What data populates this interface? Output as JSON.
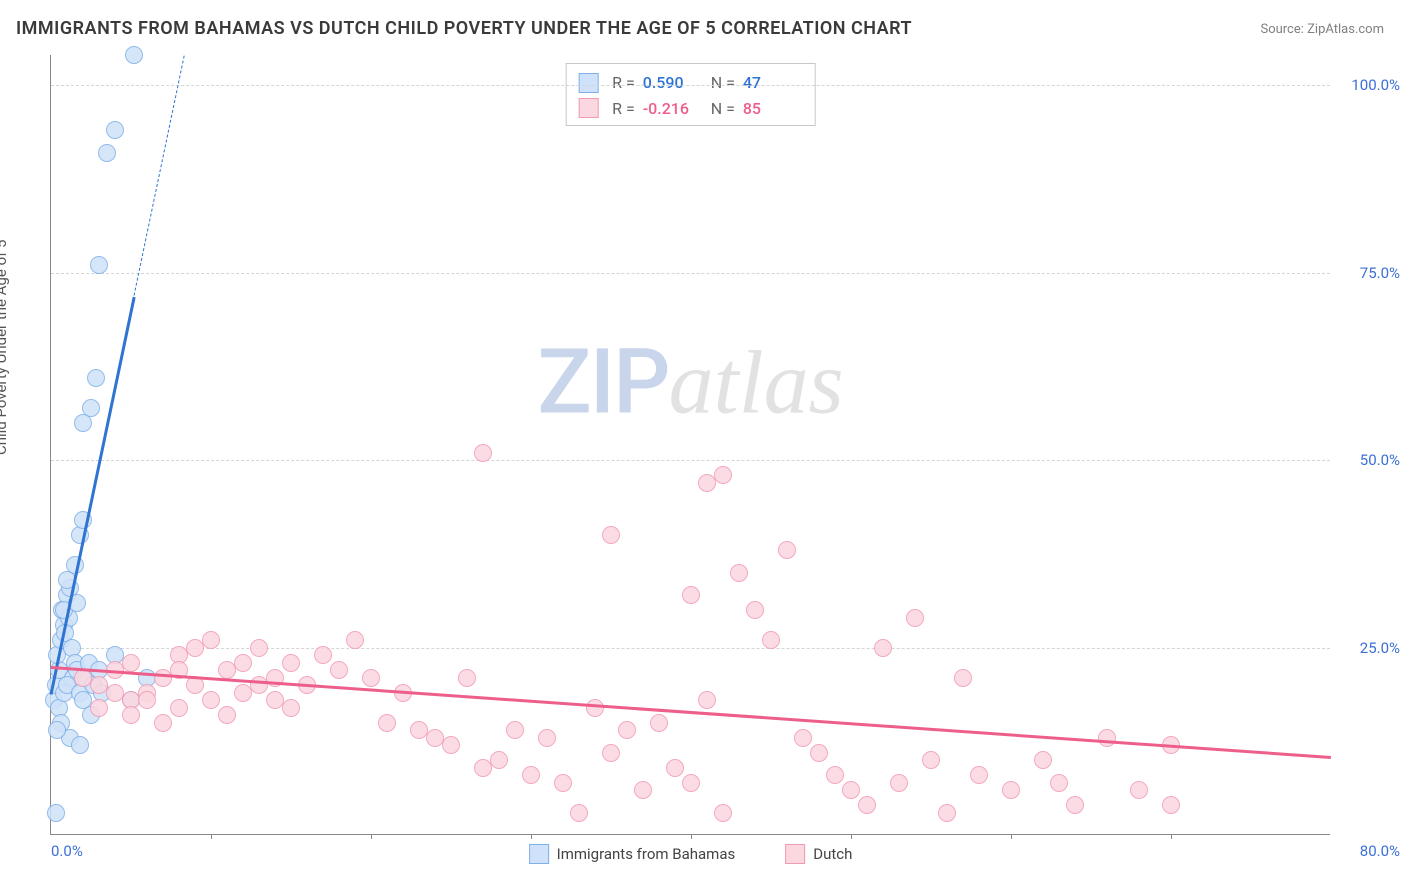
{
  "title": "IMMIGRANTS FROM BAHAMAS VS DUTCH CHILD POVERTY UNDER THE AGE OF 5 CORRELATION CHART",
  "source_label": "Source: ",
  "source_name": "ZipAtlas.com",
  "ylabel": "Child Poverty Under the Age of 5",
  "watermark": {
    "part1": "ZIP",
    "part2": "atlas"
  },
  "chart": {
    "type": "scatter",
    "xlim": [
      0,
      80
    ],
    "ylim": [
      0,
      104
    ],
    "x_ticks": [
      0,
      80
    ],
    "x_tick_labels": [
      "0.0%",
      "80.0%"
    ],
    "y_ticks": [
      25,
      50,
      75,
      100
    ],
    "y_tick_labels": [
      "25.0%",
      "50.0%",
      "75.0%",
      "100.0%"
    ],
    "x_minor_ticks": [
      10,
      20,
      30,
      40,
      50,
      60,
      70
    ],
    "x_tick_color": "#3b6fd6",
    "y_tick_color": "#3b6fd6",
    "background_color": "#ffffff",
    "grid_color": "#d5d5d5",
    "axis_color": "#888888",
    "series": [
      {
        "name": "Immigrants from Bahamas",
        "fill": "#cfe2f9",
        "stroke": "#7fb0e8",
        "trend_color": "#2f74d0",
        "R": "0.590",
        "N": "47",
        "trend": {
          "x1": 0,
          "y1": 19,
          "x2": 5.2,
          "y2": 72,
          "dash_to_y": 104
        },
        "points": [
          [
            0.2,
            18
          ],
          [
            0.3,
            20
          ],
          [
            0.5,
            22
          ],
          [
            0.4,
            24
          ],
          [
            0.6,
            26
          ],
          [
            0.8,
            28
          ],
          [
            0.7,
            30
          ],
          [
            1.0,
            32
          ],
          [
            1.2,
            33
          ],
          [
            1.1,
            29
          ],
          [
            0.9,
            27
          ],
          [
            1.3,
            25
          ],
          [
            1.5,
            23
          ],
          [
            1.4,
            21
          ],
          [
            0.5,
            17
          ],
          [
            0.8,
            19
          ],
          [
            1.0,
            20
          ],
          [
            1.6,
            22
          ],
          [
            1.8,
            19
          ],
          [
            2.0,
            18
          ],
          [
            2.2,
            21
          ],
          [
            2.4,
            23
          ],
          [
            2.6,
            20
          ],
          [
            3.0,
            22
          ],
          [
            3.2,
            19
          ],
          [
            4.0,
            24
          ],
          [
            5.0,
            18
          ],
          [
            6.0,
            21
          ],
          [
            1.0,
            34
          ],
          [
            1.5,
            36
          ],
          [
            1.8,
            40
          ],
          [
            2.0,
            42
          ],
          [
            0.6,
            15
          ],
          [
            1.2,
            13
          ],
          [
            1.8,
            12
          ],
          [
            2.5,
            16
          ],
          [
            0.4,
            14
          ],
          [
            2.0,
            55
          ],
          [
            2.5,
            57
          ],
          [
            2.8,
            61
          ],
          [
            3.0,
            76
          ],
          [
            3.5,
            91
          ],
          [
            4.0,
            94
          ],
          [
            5.2,
            104
          ],
          [
            0.3,
            3
          ],
          [
            0.8,
            30
          ],
          [
            1.6,
            31
          ]
        ]
      },
      {
        "name": "Dutch",
        "fill": "#fbd7e0",
        "stroke": "#f29ab4",
        "trend_color": "#ed5f8a",
        "R": "-0.216",
        "N": "85",
        "trend": {
          "x1": 0,
          "y1": 22.5,
          "x2": 80,
          "y2": 10.5
        },
        "points": [
          [
            2,
            21
          ],
          [
            3,
            20
          ],
          [
            4,
            22
          ],
          [
            5,
            23
          ],
          [
            5,
            18
          ],
          [
            6,
            19
          ],
          [
            7,
            21
          ],
          [
            8,
            24
          ],
          [
            8,
            17
          ],
          [
            9,
            20
          ],
          [
            10,
            26
          ],
          [
            11,
            22
          ],
          [
            12,
            19
          ],
          [
            13,
            25
          ],
          [
            14,
            21
          ],
          [
            15,
            23
          ],
          [
            15,
            17
          ],
          [
            16,
            20
          ],
          [
            17,
            24
          ],
          [
            18,
            22
          ],
          [
            19,
            26
          ],
          [
            20,
            21
          ],
          [
            21,
            15
          ],
          [
            22,
            19
          ],
          [
            23,
            14
          ],
          [
            24,
            13
          ],
          [
            25,
            12
          ],
          [
            26,
            21
          ],
          [
            27,
            9
          ],
          [
            28,
            10
          ],
          [
            29,
            14
          ],
          [
            30,
            8
          ],
          [
            31,
            13
          ],
          [
            32,
            7
          ],
          [
            33,
            3
          ],
          [
            34,
            17
          ],
          [
            35,
            11
          ],
          [
            36,
            14
          ],
          [
            37,
            6
          ],
          [
            38,
            15
          ],
          [
            39,
            9
          ],
          [
            40,
            7
          ],
          [
            41,
            18
          ],
          [
            40,
            32
          ],
          [
            41,
            47
          ],
          [
            42,
            48
          ],
          [
            42,
            3
          ],
          [
            43,
            35
          ],
          [
            44,
            30
          ],
          [
            45,
            26
          ],
          [
            46,
            38
          ],
          [
            47,
            13
          ],
          [
            48,
            11
          ],
          [
            49,
            8
          ],
          [
            50,
            6
          ],
          [
            51,
            4
          ],
          [
            52,
            25
          ],
          [
            53,
            7
          ],
          [
            54,
            29
          ],
          [
            55,
            10
          ],
          [
            56,
            3
          ],
          [
            57,
            21
          ],
          [
            58,
            8
          ],
          [
            60,
            6
          ],
          [
            27,
            51
          ],
          [
            35,
            40
          ],
          [
            62,
            10
          ],
          [
            63,
            7
          ],
          [
            64,
            4
          ],
          [
            66,
            13
          ],
          [
            68,
            6
          ],
          [
            70,
            12
          ],
          [
            70,
            4
          ],
          [
            3,
            17
          ],
          [
            4,
            19
          ],
          [
            5,
            16
          ],
          [
            6,
            18
          ],
          [
            7,
            15
          ],
          [
            8,
            22
          ],
          [
            9,
            25
          ],
          [
            10,
            18
          ],
          [
            11,
            16
          ],
          [
            12,
            23
          ],
          [
            13,
            20
          ],
          [
            14,
            18
          ]
        ]
      }
    ]
  },
  "stats_box": {
    "r_label": "R  =",
    "n_label": "N  ="
  },
  "legend": {
    "items": [
      "Immigrants from Bahamas",
      "Dutch"
    ]
  }
}
